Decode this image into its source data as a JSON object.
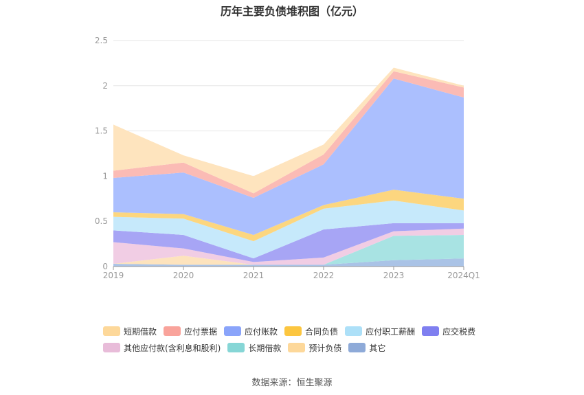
{
  "title": "历年主要负债堆积图（亿元）",
  "source": "数据来源：恒生聚源",
  "chart_data": {
    "type": "area",
    "stacked": true,
    "categories": [
      "2019",
      "2020",
      "2021",
      "2022",
      "2023",
      "2024Q1"
    ],
    "ylim": [
      0,
      2.5
    ],
    "yticks": [
      "0",
      "0.5",
      "1",
      "1.5",
      "2",
      "2.5"
    ],
    "grid": true,
    "legend_position": "bottom",
    "series": [
      {
        "name": "其它",
        "color": "#aac3e6",
        "values": [
          0.03,
          0.02,
          0.02,
          0.02,
          0.07,
          0.09
        ]
      },
      {
        "name": "预计负债",
        "color": "#fde3bd",
        "values": [
          0.0,
          0.1,
          0.0,
          0.0,
          0.0,
          0.0
        ]
      },
      {
        "name": "长期借款",
        "color": "#a8e3e3",
        "values": [
          0.0,
          0.0,
          0.0,
          0.0,
          0.27,
          0.26
        ]
      },
      {
        "name": "其他应付款(含利息和股利)",
        "color": "#f1cde4",
        "values": [
          0.24,
          0.08,
          0.03,
          0.08,
          0.05,
          0.07
        ]
      },
      {
        "name": "应交税费",
        "color": "#a7a5f5",
        "values": [
          0.13,
          0.15,
          0.04,
          0.31,
          0.09,
          0.06
        ]
      },
      {
        "name": "应付职工薪酬",
        "color": "#c6e9fb",
        "values": [
          0.15,
          0.18,
          0.19,
          0.23,
          0.25,
          0.14
        ]
      },
      {
        "name": "合同负债",
        "color": "#fcd67f",
        "values": [
          0.05,
          0.05,
          0.07,
          0.04,
          0.12,
          0.13
        ]
      },
      {
        "name": "应付账款",
        "color": "#abbffe",
        "values": [
          0.38,
          0.46,
          0.41,
          0.45,
          1.23,
          1.12
        ]
      },
      {
        "name": "应付票据",
        "color": "#fbbbb5",
        "values": [
          0.08,
          0.11,
          0.05,
          0.11,
          0.08,
          0.11
        ]
      },
      {
        "name": "短期借款",
        "color": "#fee4be",
        "values": [
          0.51,
          0.08,
          0.19,
          0.11,
          0.04,
          0.02
        ]
      }
    ]
  },
  "legend": [
    [
      {
        "label": "短期借款",
        "color": "#fdd89a"
      },
      {
        "label": "应付票据",
        "color": "#f9a39b"
      },
      {
        "label": "应付账款",
        "color": "#8aa4fa"
      },
      {
        "label": "合同负债",
        "color": "#fcc640"
      },
      {
        "label": "应付职工薪酬",
        "color": "#ade0f8"
      },
      {
        "label": "应交税费",
        "color": "#7f7ff0"
      }
    ],
    [
      {
        "label": "其他应付款(含利息和股利)",
        "color": "#e8bcd9"
      },
      {
        "label": "长期借款",
        "color": "#86d6d6"
      },
      {
        "label": "预计负债",
        "color": "#fdd89a"
      },
      {
        "label": "其它",
        "color": "#8eaad8"
      }
    ]
  ]
}
